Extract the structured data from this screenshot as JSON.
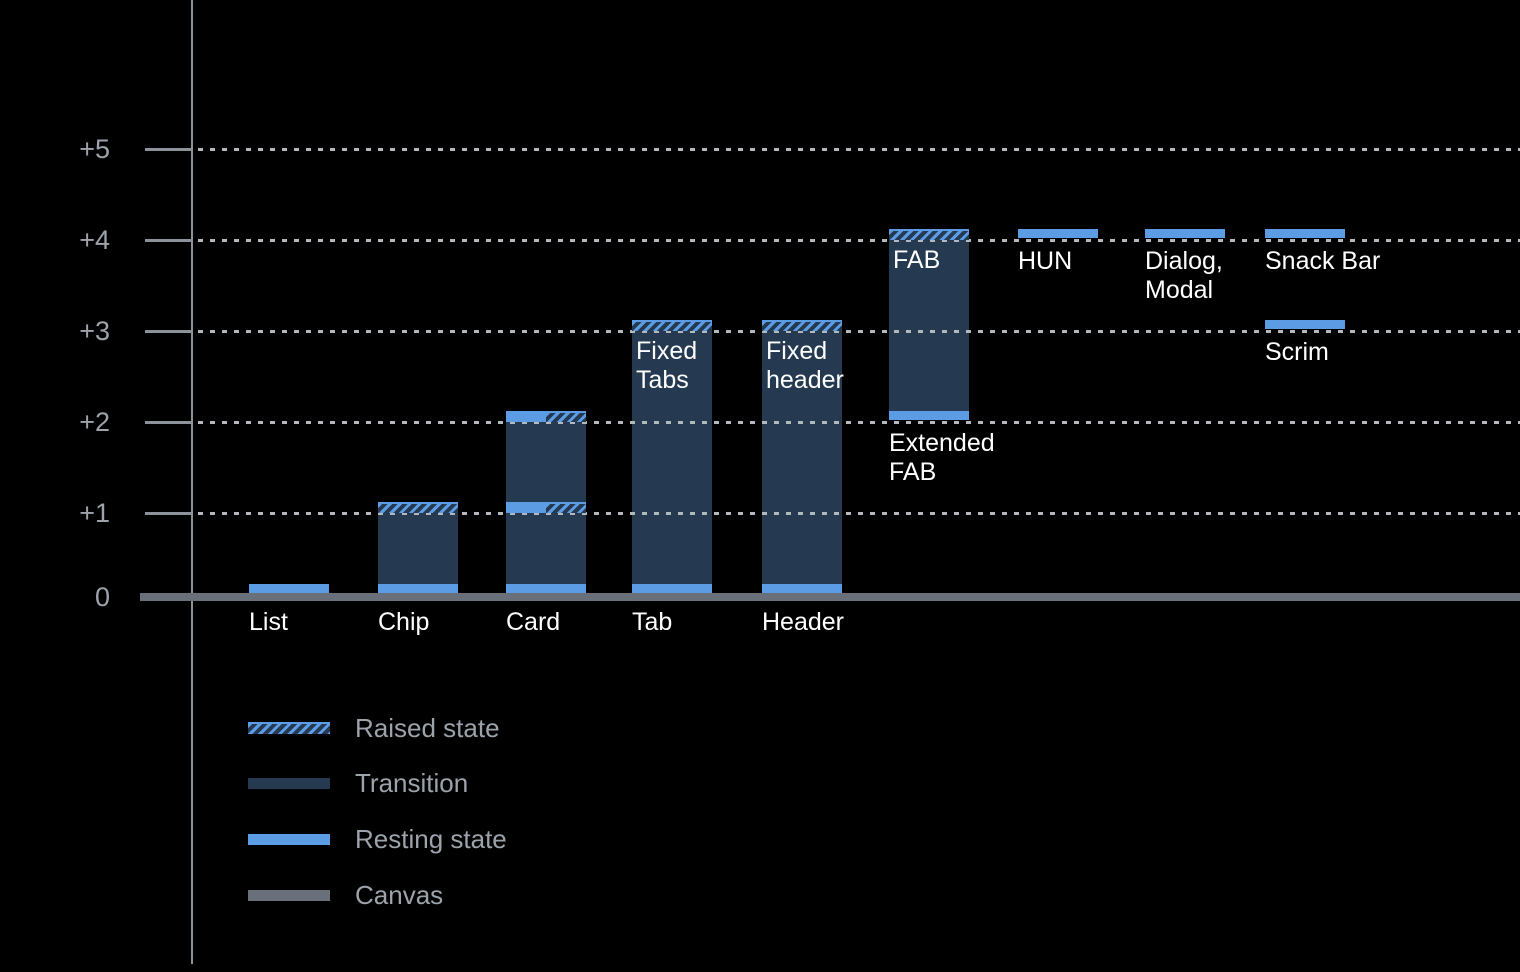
{
  "chart_data": {
    "type": "bar",
    "title": "",
    "xlabel": "",
    "ylabel": "",
    "ylim": [
      0,
      5.5
    ],
    "grid": "dotted-horizontal",
    "legend_position": "bottom-left",
    "yticks": [
      {
        "label": "+5",
        "level": 5
      },
      {
        "label": "+4",
        "level": 4
      },
      {
        "label": "+3",
        "level": 3
      },
      {
        "label": "+2",
        "level": 2
      },
      {
        "label": "+1",
        "level": 1
      },
      {
        "label": "0",
        "level": 0
      }
    ],
    "legend": [
      {
        "label": "Raised state",
        "swatch": "raised"
      },
      {
        "label": "Transition",
        "swatch": "transition"
      },
      {
        "label": "Resting state",
        "swatch": "resting"
      },
      {
        "label": "Canvas",
        "swatch": "canvas"
      }
    ],
    "colors": {
      "resting": "#5B9CE5",
      "transition": "#253A50",
      "canvas": "#6A7079",
      "axis": "#8C929A",
      "grid": "#B2B8BE",
      "tick_label": "#9DA3AB",
      "bar_label": "#FFFFFF",
      "background": "#000000"
    },
    "columns": [
      {
        "name": "List",
        "segments": [
          {
            "kind": "resting",
            "level": 0
          }
        ],
        "labels": [
          {
            "lines": [
              "List"
            ],
            "placement": "bottom"
          }
        ]
      },
      {
        "name": "Chip",
        "segments": [
          {
            "kind": "transition",
            "from": 0,
            "to": 1
          },
          {
            "kind": "raised",
            "level": 1
          },
          {
            "kind": "resting",
            "level": 0
          }
        ],
        "labels": [
          {
            "lines": [
              "Chip"
            ],
            "placement": "bottom"
          }
        ]
      },
      {
        "name": "Card",
        "segments": [
          {
            "kind": "transition",
            "from": 0,
            "to": 2
          },
          {
            "kind": "split",
            "level": 2,
            "left": "resting",
            "right": "raised"
          },
          {
            "kind": "split",
            "level": 1,
            "left": "resting",
            "right": "raised"
          },
          {
            "kind": "resting",
            "level": 0
          }
        ],
        "labels": [
          {
            "lines": [
              "Card"
            ],
            "placement": "bottom"
          }
        ]
      },
      {
        "name": "Tab",
        "segments": [
          {
            "kind": "transition",
            "from": 0,
            "to": 3
          },
          {
            "kind": "raised",
            "level": 3
          },
          {
            "kind": "resting",
            "level": 0
          }
        ],
        "labels": [
          {
            "lines": [
              "Fixed",
              "Tabs"
            ],
            "placement": "inside-top",
            "level": 3
          },
          {
            "lines": [
              "Tab"
            ],
            "placement": "bottom"
          }
        ]
      },
      {
        "name": "Header",
        "segments": [
          {
            "kind": "transition",
            "from": 0,
            "to": 3
          },
          {
            "kind": "raised",
            "level": 3
          },
          {
            "kind": "resting",
            "level": 0
          }
        ],
        "labels": [
          {
            "lines": [
              "Fixed",
              "header"
            ],
            "placement": "inside-top",
            "level": 3
          },
          {
            "lines": [
              "Header"
            ],
            "placement": "bottom"
          }
        ]
      },
      {
        "name": "FAB",
        "segments": [
          {
            "kind": "transition",
            "from": 2,
            "to": 4
          },
          {
            "kind": "raised",
            "level": 4
          },
          {
            "kind": "resting",
            "level": 2
          }
        ],
        "labels": [
          {
            "lines": [
              "FAB"
            ],
            "placement": "inside-top",
            "level": 4
          },
          {
            "lines": [
              "Extended",
              "FAB"
            ],
            "placement": "below-level",
            "level": 2
          }
        ]
      },
      {
        "name": "HUN",
        "segments": [
          {
            "kind": "resting",
            "level": 4
          }
        ],
        "labels": [
          {
            "lines": [
              "HUN"
            ],
            "placement": "below-level",
            "level": 4
          }
        ]
      },
      {
        "name": "Dialog, Modal",
        "segments": [
          {
            "kind": "resting",
            "level": 4
          }
        ],
        "labels": [
          {
            "lines": [
              "Dialog,",
              "Modal"
            ],
            "placement": "below-level",
            "level": 4
          }
        ]
      },
      {
        "name": "Snack Bar / Scrim",
        "segments": [
          {
            "kind": "resting",
            "level": 4
          },
          {
            "kind": "resting",
            "level": 3
          }
        ],
        "labels": [
          {
            "lines": [
              "Snack Bar"
            ],
            "placement": "below-level",
            "level": 4
          },
          {
            "lines": [
              "Scrim"
            ],
            "placement": "below-level",
            "level": 3
          }
        ]
      }
    ]
  }
}
